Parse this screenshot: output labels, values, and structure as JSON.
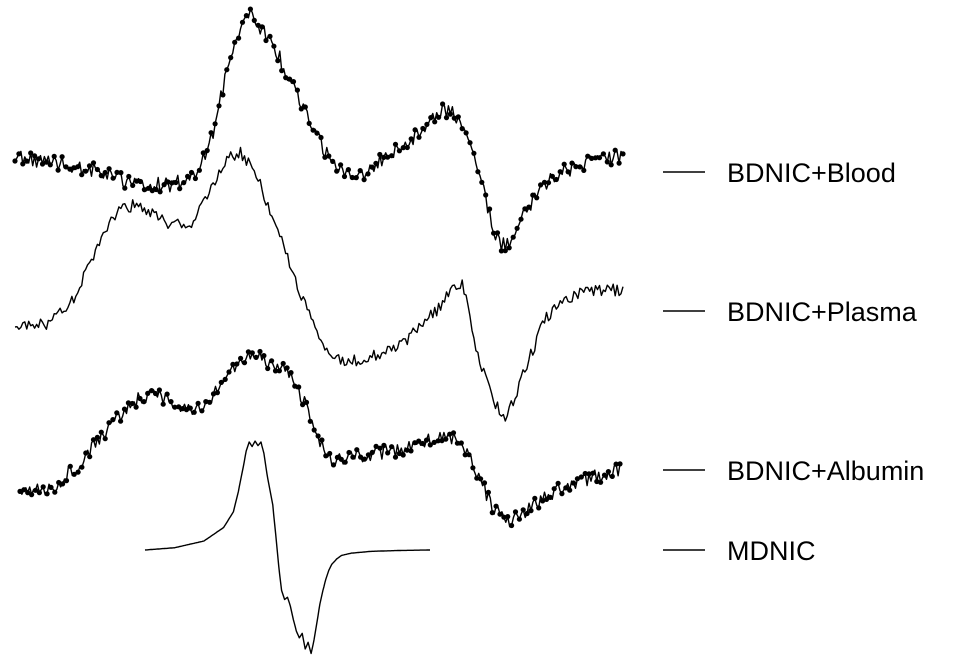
{
  "chart_data": {
    "type": "line",
    "title": "",
    "xlabel": "",
    "ylabel": "",
    "grid": false,
    "axes_visible": false,
    "legend_placement": "right",
    "line_color": "#000000",
    "series": [
      {
        "name": "BDNIC+Blood",
        "markers": true,
        "x": [
          0,
          40,
          80,
          120,
          160,
          180,
          190,
          200,
          205,
          210,
          215,
          220,
          225,
          230,
          235,
          240,
          245,
          250,
          255,
          260,
          265,
          270,
          275,
          285,
          295,
          305,
          315,
          325,
          335,
          345,
          355,
          365,
          375,
          385,
          395,
          405,
          415,
          425,
          435,
          445,
          455,
          465,
          470,
          475,
          480,
          485,
          490,
          495,
          500,
          505,
          510,
          515,
          520,
          530,
          540,
          550,
          560,
          570,
          580,
          590,
          600,
          610,
          620
        ],
        "y": [
          0.46,
          0.4,
          0.3,
          0.1,
          0.1,
          0.2,
          0.4,
          0.7,
          0.95,
          1.25,
          1.55,
          1.85,
          2.05,
          2.2,
          2.3,
          2.35,
          2.28,
          2.2,
          2.1,
          2.0,
          1.9,
          1.78,
          1.62,
          1.38,
          1.08,
          0.8,
          0.58,
          0.38,
          0.28,
          0.22,
          0.26,
          0.3,
          0.45,
          0.55,
          0.62,
          0.72,
          0.82,
          0.98,
          1.1,
          1.08,
          0.85,
          0.62,
          0.42,
          0.18,
          -0.1,
          -0.38,
          -0.58,
          -0.7,
          -0.72,
          -0.68,
          -0.55,
          -0.42,
          -0.28,
          -0.05,
          0.1,
          0.22,
          0.28,
          0.33,
          0.38,
          0.42,
          0.45,
          0.46,
          0.46
        ]
      },
      {
        "name": "BDNIC+Plasma",
        "markers": false,
        "x": [
          0,
          30,
          60,
          80,
          100,
          120,
          140,
          160,
          180,
          200,
          210,
          220,
          230,
          240,
          250,
          260,
          270,
          280,
          290,
          300,
          310,
          320,
          340,
          360,
          380,
          400,
          420,
          435,
          445,
          455,
          460,
          465,
          470,
          480,
          490,
          500,
          510,
          520,
          540,
          560,
          580,
          600,
          620
        ],
        "y": [
          0.0,
          0.0,
          0.25,
          0.7,
          1.1,
          1.2,
          1.1,
          1.0,
          1.0,
          1.35,
          1.55,
          1.68,
          1.72,
          1.6,
          1.4,
          1.15,
          0.9,
          0.62,
          0.35,
          0.1,
          -0.15,
          -0.3,
          -0.36,
          -0.33,
          -0.24,
          -0.15,
          0.05,
          0.2,
          0.35,
          0.42,
          0.28,
          0.05,
          -0.25,
          -0.55,
          -0.8,
          -0.9,
          -0.72,
          -0.45,
          0.05,
          0.25,
          0.35,
          0.35,
          0.35
        ]
      },
      {
        "name": "BDNIC+Albumin",
        "markers": true,
        "x": [
          0,
          30,
          60,
          80,
          100,
          120,
          140,
          160,
          180,
          200,
          215,
          230,
          245,
          255,
          265,
          275,
          285,
          295,
          305,
          315,
          325,
          340,
          360,
          380,
          400,
          420,
          435,
          450,
          460,
          470,
          480,
          490,
          500,
          510,
          520,
          540,
          560,
          580,
          600,
          620
        ],
        "y": [
          0.0,
          0.0,
          0.25,
          0.5,
          0.7,
          0.9,
          0.95,
          0.85,
          0.8,
          0.95,
          1.15,
          1.3,
          1.35,
          1.28,
          1.2,
          1.2,
          1.05,
          0.85,
          0.62,
          0.4,
          0.3,
          0.32,
          0.35,
          0.38,
          0.4,
          0.48,
          0.52,
          0.5,
          0.4,
          0.22,
          0.0,
          -0.2,
          -0.3,
          -0.3,
          -0.22,
          -0.1,
          0.02,
          0.1,
          0.15,
          0.2
        ]
      },
      {
        "name": "MDNIC",
        "markers": false,
        "x": [
          0,
          30,
          60,
          80,
          90,
          95,
          100,
          103,
          106,
          109,
          112,
          115,
          118,
          121,
          124,
          127,
          130,
          133,
          136,
          139,
          142,
          145,
          148,
          151,
          154,
          157,
          160,
          163,
          166,
          169,
          172,
          175,
          178,
          181,
          184,
          187,
          190,
          195,
          200,
          210,
          230,
          260,
          290
        ],
        "y": [
          0.0,
          0.05,
          0.2,
          0.5,
          0.85,
          1.3,
          1.85,
          2.2,
          2.4,
          2.3,
          2.42,
          2.32,
          2.4,
          2.15,
          1.7,
          1.35,
          1.0,
          0.35,
          -0.35,
          -0.9,
          -1.1,
          -1.05,
          -1.25,
          -1.55,
          -1.8,
          -1.95,
          -1.85,
          -2.2,
          -2.05,
          -2.3,
          -2.0,
          -1.6,
          -1.2,
          -0.9,
          -0.65,
          -0.45,
          -0.32,
          -0.2,
          -0.12,
          -0.07,
          -0.03,
          -0.01,
          0.0
        ]
      }
    ]
  }
}
